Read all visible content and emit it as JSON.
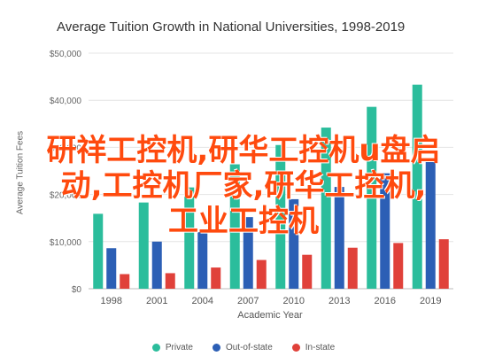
{
  "chart_data": {
    "type": "bar",
    "title": "Average Tuition Growth in National Universities, 1998-2019",
    "xlabel": "Academic Year",
    "ylabel": "Average Tuition Fees",
    "categories": [
      "1998",
      "2001",
      "2004",
      "2007",
      "2010",
      "2013",
      "2016",
      "2019"
    ],
    "y_ticks": [
      "$0",
      "$10,000",
      "$20,000",
      "$30,000",
      "$40,000",
      "$50,000"
    ],
    "ylim": [
      0,
      50000
    ],
    "grid": true,
    "legend_position": "bottom",
    "series": [
      {
        "name": "Private",
        "color": "#2bbd9c",
        "values": [
          15900,
          18300,
          21500,
          26400,
          30500,
          34200,
          38600,
          43300
        ]
      },
      {
        "name": "Out-of-state",
        "color": "#2c5fb5",
        "values": [
          8600,
          10000,
          12000,
          15200,
          19000,
          21600,
          24500,
          27000
        ]
      },
      {
        "name": "In-state",
        "color": "#e0413a",
        "values": [
          3100,
          3300,
          4500,
          6100,
          7200,
          8700,
          9700,
          10500
        ]
      }
    ]
  },
  "overlay": {
    "lines": [
      "研祥工控机,研华工控机u盘启",
      "动,工控机厂家,研华工控机,",
      "工业工控机"
    ]
  }
}
